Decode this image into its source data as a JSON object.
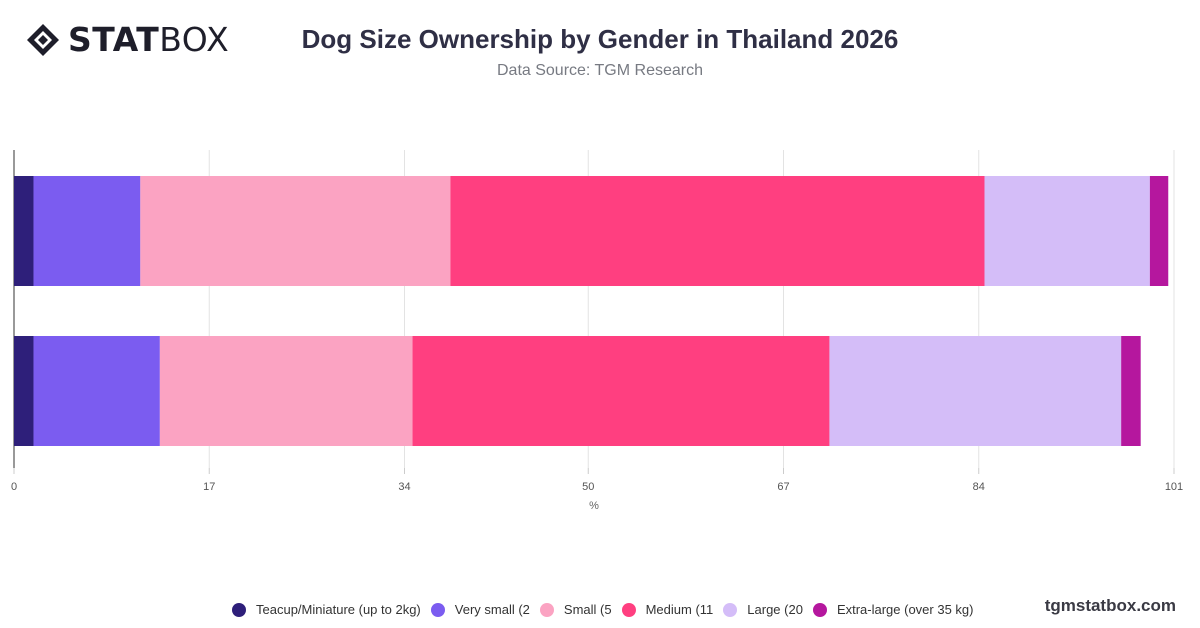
{
  "logo": {
    "part1": "STAT",
    "part2": "BOX"
  },
  "title": "Dog Size Ownership by Gender in Thailand 2026",
  "subtitle": "Data Source: TGM Research",
  "brand": "tgmstatbox.com",
  "chart_data": {
    "type": "bar",
    "orientation": "horizontal",
    "stacked": true,
    "categories": [
      "",
      ""
    ],
    "xlabel": "%",
    "xlim": [
      0,
      101
    ],
    "xticks": [
      0,
      17,
      34,
      50,
      67,
      84,
      101
    ],
    "grid": true,
    "legend_position": "bottom",
    "series": [
      {
        "name": "Teacup/Miniature (up to 2kg)",
        "color": "#2e1f7a",
        "values": [
          1.7,
          1.7
        ]
      },
      {
        "name": "Very small (2",
        "color": "#7b5cf0",
        "values": [
          9.3,
          11.0
        ]
      },
      {
        "name": "Small (5",
        "color": "#fba3c2",
        "values": [
          27.0,
          22.0
        ]
      },
      {
        "name": "Medium (11",
        "color": "#ff3f80",
        "values": [
          46.5,
          36.3
        ]
      },
      {
        "name": "Large (20",
        "color": "#d4bdf8",
        "values": [
          14.4,
          25.4
        ]
      },
      {
        "name": "Extra-large (over 35 kg)",
        "color": "#b5179e",
        "values": [
          1.6,
          1.7
        ]
      }
    ]
  }
}
